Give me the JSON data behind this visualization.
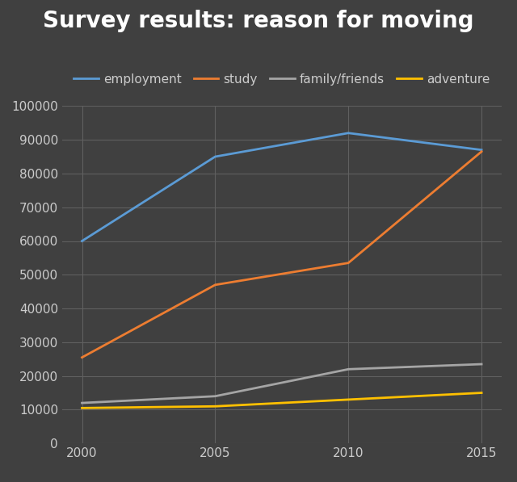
{
  "title": "Survey results: reason for moving",
  "years": [
    2000,
    2005,
    2010,
    2015
  ],
  "series": [
    {
      "label": "employment",
      "color": "#5B9BD5",
      "values": [
        60000,
        85000,
        92000,
        87000
      ]
    },
    {
      "label": "study",
      "color": "#ED7D31",
      "values": [
        25500,
        47000,
        53500,
        86500
      ]
    },
    {
      "label": "family/friends",
      "color": "#A5A5A5",
      "values": [
        12000,
        14000,
        22000,
        23500
      ]
    },
    {
      "label": "adventure",
      "color": "#FFC000",
      "values": [
        10500,
        11000,
        13000,
        15000
      ]
    }
  ],
  "ylim": [
    0,
    100000
  ],
  "yticks": [
    0,
    10000,
    20000,
    30000,
    40000,
    50000,
    60000,
    70000,
    80000,
    90000,
    100000
  ],
  "xticks": [
    2000,
    2005,
    2010,
    2015
  ],
  "background_color": "#404040",
  "grid_color": "#606060",
  "text_color": "#CCCCCC",
  "linewidth": 2.0,
  "title_fontsize": 20,
  "legend_fontsize": 11,
  "tick_fontsize": 11
}
